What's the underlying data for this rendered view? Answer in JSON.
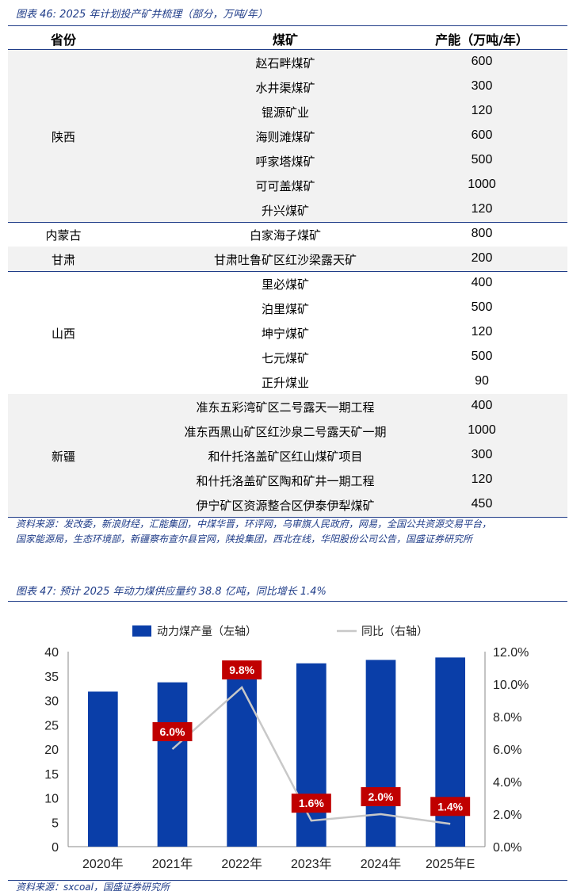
{
  "table_caption": "图表 46:  2025 年计划投产矿井梳理（部分，万吨/年）",
  "table_headers": {
    "province": "省份",
    "mine": "煤矿",
    "capacity": "产能（万吨/年）"
  },
  "groups": [
    {
      "province": "陕西",
      "shaded": true,
      "rows": [
        {
          "mine": "赵石畔煤矿",
          "capacity": "600"
        },
        {
          "mine": "水井渠煤矿",
          "capacity": "300"
        },
        {
          "mine": "锟源矿业",
          "capacity": "120"
        },
        {
          "mine": "海则滩煤矿",
          "capacity": "600"
        },
        {
          "mine": "呼家塔煤矿",
          "capacity": "500"
        },
        {
          "mine": "可可盖煤矿",
          "capacity": "1000"
        },
        {
          "mine": "升兴煤矿",
          "capacity": "120"
        }
      ]
    },
    {
      "province": "内蒙古",
      "shaded": false,
      "rows": [
        {
          "mine": "白家海子煤矿",
          "capacity": "800"
        }
      ]
    },
    {
      "province": "甘肃",
      "shaded": true,
      "rows": [
        {
          "mine": "甘肃吐鲁矿区红沙梁露天矿",
          "capacity": "200"
        }
      ]
    },
    {
      "province": "山西",
      "shaded": false,
      "rows": [
        {
          "mine": "里必煤矿",
          "capacity": "400"
        },
        {
          "mine": "泊里煤矿",
          "capacity": "500"
        },
        {
          "mine": "坤宁煤矿",
          "capacity": "120"
        },
        {
          "mine": "七元煤矿",
          "capacity": "500"
        },
        {
          "mine": "正升煤业",
          "capacity": "90"
        }
      ]
    },
    {
      "province": "新疆",
      "shaded": true,
      "rows": [
        {
          "mine": "准东五彩湾矿区二号露天一期工程",
          "capacity": "400"
        },
        {
          "mine": "准东西黑山矿区红沙泉二号露天矿一期",
          "capacity": "1000"
        },
        {
          "mine": "和什托洛盖矿区红山煤矿项目",
          "capacity": "300"
        },
        {
          "mine": "和什托洛盖矿区陶和矿井一期工程",
          "capacity": "120"
        },
        {
          "mine": "伊宁矿区资源整合区伊泰伊犁煤矿",
          "capacity": "450"
        }
      ]
    }
  ],
  "table_source_line1": "资料来源：发改委，新浪财经，汇能集团，中煤华晋，环评网，乌审旗人民政府，网易，全国公共资源交易平台，",
  "table_source_line2": "国家能源局，生态环境部，新疆察布查尔县官网，陕投集团，西北在线，华阳股份公司公告，国盛证券研究所",
  "chart_caption": "图表 47:  预计 2025 年动力煤供应量约 38.8 亿吨，同比增长 1.4%",
  "chart_source": "资料来源：sxcoal，国盛证券研究所",
  "colors": {
    "bar": "#0a3ea8",
    "line": "#c8c8c8",
    "label_bg": "#c00000",
    "accent": "#1f3c88",
    "shade": "#f2f2f2"
  },
  "chart_data": {
    "type": "bar",
    "categories": [
      "2020年",
      "2021年",
      "2022年",
      "2023年",
      "2024年",
      "2025年E"
    ],
    "series": [
      {
        "name": "动力煤产量（左轴）",
        "type": "bar",
        "axis": "left",
        "values": [
          31.8,
          33.7,
          37.0,
          37.6,
          38.3,
          38.8
        ]
      },
      {
        "name": "同比（右轴）",
        "type": "line",
        "axis": "right",
        "values": [
          null,
          6.0,
          9.8,
          1.6,
          2.0,
          1.4
        ]
      }
    ],
    "data_labels": [
      "",
      "6.0%",
      "9.8%",
      "1.6%",
      "2.0%",
      "1.4%"
    ],
    "left_ticks": [
      "0",
      "5",
      "10",
      "15",
      "20",
      "25",
      "30",
      "35",
      "40"
    ],
    "right_ticks": [
      "0.0%",
      "2.0%",
      "4.0%",
      "6.0%",
      "8.0%",
      "10.0%",
      "12.0%"
    ],
    "ylim_left": [
      0,
      40
    ],
    "ylim_right": [
      0,
      12
    ],
    "legend_position": "top"
  }
}
